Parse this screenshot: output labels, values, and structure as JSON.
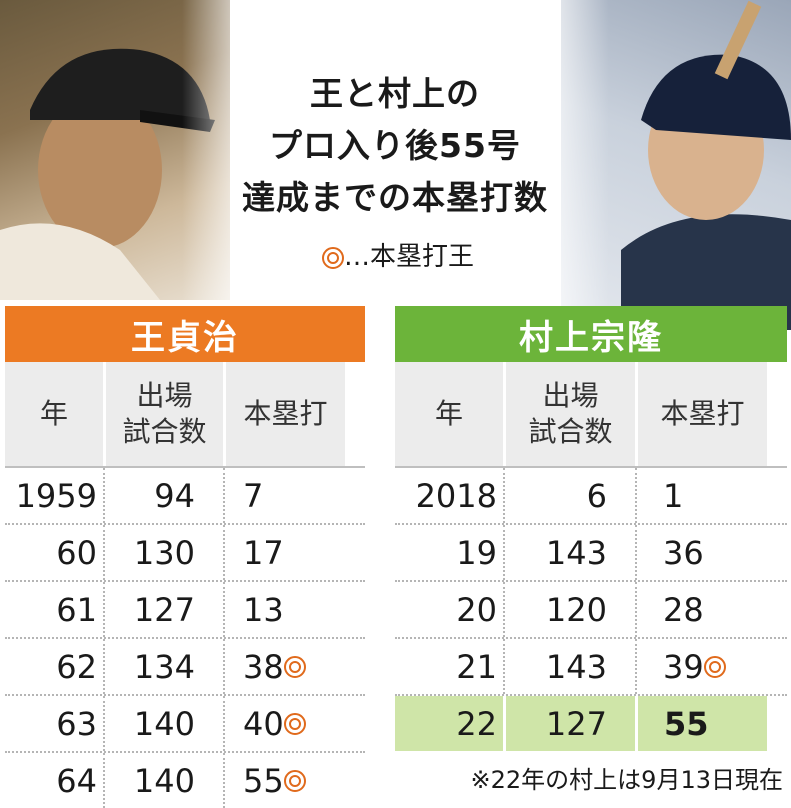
{
  "title_lines": [
    "王と村上の",
    "プロ入り後55号",
    "達成までの本塁打数"
  ],
  "legend": {
    "label": "…本塁打王"
  },
  "left_table": {
    "player": "王貞治",
    "headers": {
      "year": "年",
      "games_line1": "出場",
      "games_line2": "試合数",
      "hr": "本塁打"
    },
    "rows": [
      {
        "year": "1959",
        "games": "94",
        "hr": "7",
        "crown": false
      },
      {
        "year": "60",
        "games": "130",
        "hr": "17",
        "crown": false
      },
      {
        "year": "61",
        "games": "127",
        "hr": "13",
        "crown": false
      },
      {
        "year": "62",
        "games": "134",
        "hr": "38",
        "crown": true
      },
      {
        "year": "63",
        "games": "140",
        "hr": "40",
        "crown": true
      },
      {
        "year": "64",
        "games": "140",
        "hr": "55",
        "crown": true
      }
    ]
  },
  "right_table": {
    "player": "村上宗隆",
    "headers": {
      "year": "年",
      "games_line1": "出場",
      "games_line2": "試合数",
      "hr": "本塁打"
    },
    "rows": [
      {
        "year": "2018",
        "games": "6",
        "hr": "1",
        "crown": false
      },
      {
        "year": "19",
        "games": "143",
        "hr": "36",
        "crown": false
      },
      {
        "year": "20",
        "games": "120",
        "hr": "28",
        "crown": false
      },
      {
        "year": "21",
        "games": "143",
        "hr": "39",
        "crown": true
      },
      {
        "year": "22",
        "games": "127",
        "hr": "55",
        "crown": false,
        "highlight": true
      }
    ]
  },
  "footnote": "※22年の村上は9月13日現在",
  "colors": {
    "oh_accent": "#ec7a23",
    "murakami_accent": "#6cb43a",
    "highlight": "#cfe5a8",
    "crown_mark": "#e06a1c"
  }
}
